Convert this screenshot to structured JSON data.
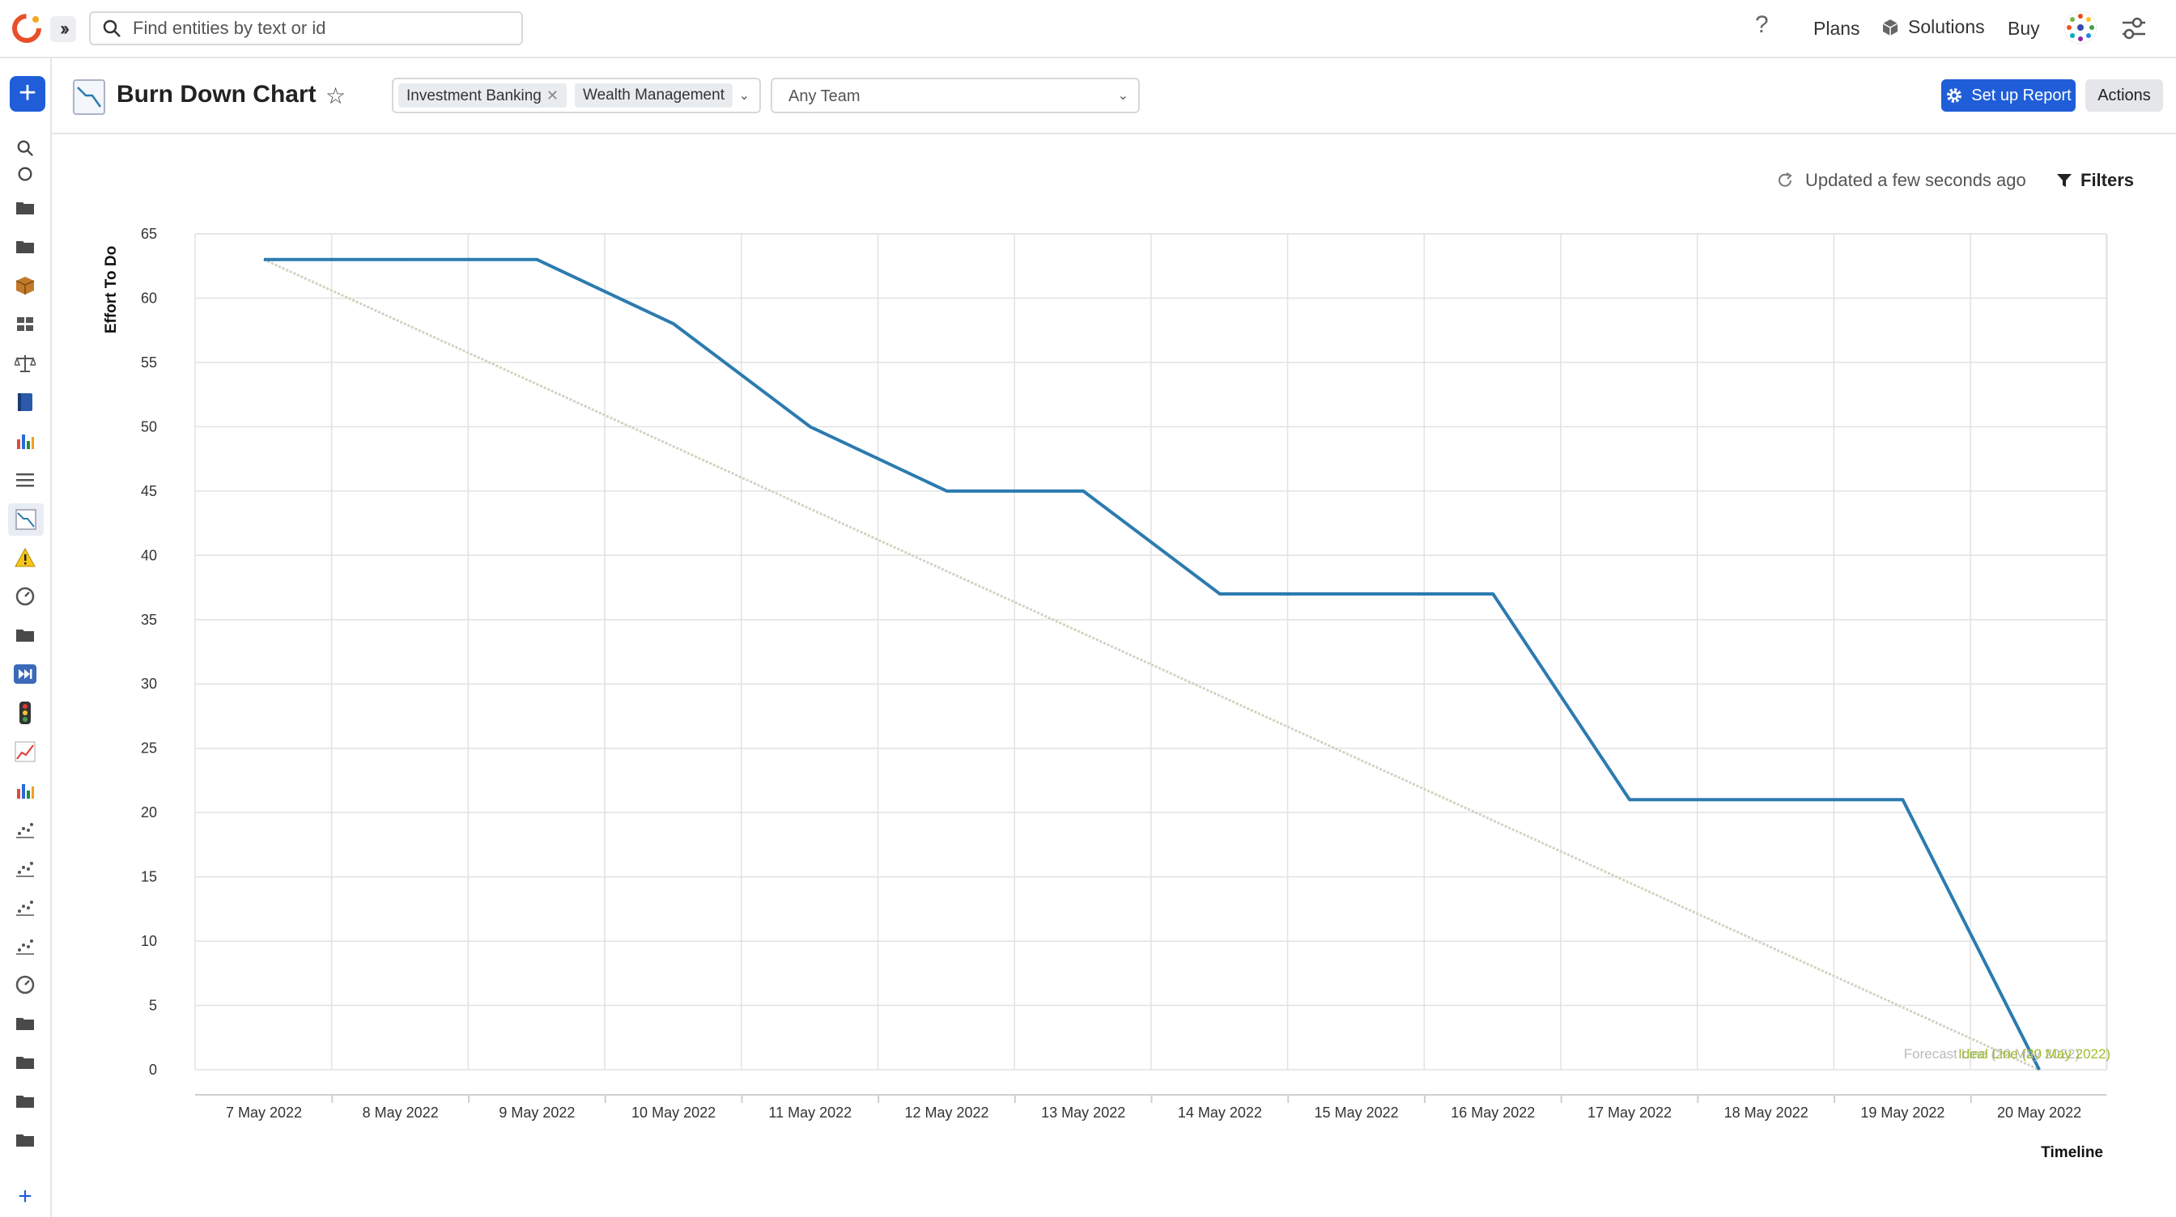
{
  "topbar": {
    "search_placeholder": "Find entities by text or id",
    "help": "?",
    "plans": "Plans",
    "solutions": "Solutions",
    "buy": "Buy"
  },
  "header": {
    "title": "Burn Down Chart",
    "filter_chips": [
      "Investment Banking",
      "Wealth Management"
    ],
    "team_select": "Any Team",
    "setup_label": "Set up Report",
    "actions_label": "Actions"
  },
  "status": {
    "updated": "Updated a few seconds ago",
    "filters": "Filters"
  },
  "colors": {
    "accent": "#1f5ed8",
    "actual_line": "#2b7bb0",
    "ideal_line": "#d2d2c0",
    "forecast_text": "#bbbbbb",
    "ideal_text": "#9cbf2a"
  },
  "chart_data": {
    "type": "line",
    "ylabel": "Effort To Do",
    "xlabel": "Timeline",
    "ylim": [
      0,
      65
    ],
    "yticks": [
      0,
      5,
      10,
      15,
      20,
      25,
      30,
      35,
      40,
      45,
      50,
      55,
      60,
      65
    ],
    "categories": [
      "7 May 2022",
      "8 May 2022",
      "9 May 2022",
      "10 May 2022",
      "11 May 2022",
      "12 May 2022",
      "13 May 2022",
      "14 May 2022",
      "15 May 2022",
      "16 May 2022",
      "17 May 2022",
      "18 May 2022",
      "19 May 2022",
      "20 May 2022"
    ],
    "grid": true,
    "series": [
      {
        "values": [
          63,
          63,
          63,
          58,
          50,
          45,
          45,
          37,
          37,
          37,
          21,
          21,
          21,
          0
        ]
      },
      {
        "values": [
          63,
          null,
          null,
          null,
          null,
          null,
          null,
          null,
          null,
          null,
          null,
          null,
          null,
          0
        ]
      }
    ],
    "annotations": [
      "Forecast Line (20 May 2022)",
      "Ideal Line (20 May 2022)"
    ]
  }
}
